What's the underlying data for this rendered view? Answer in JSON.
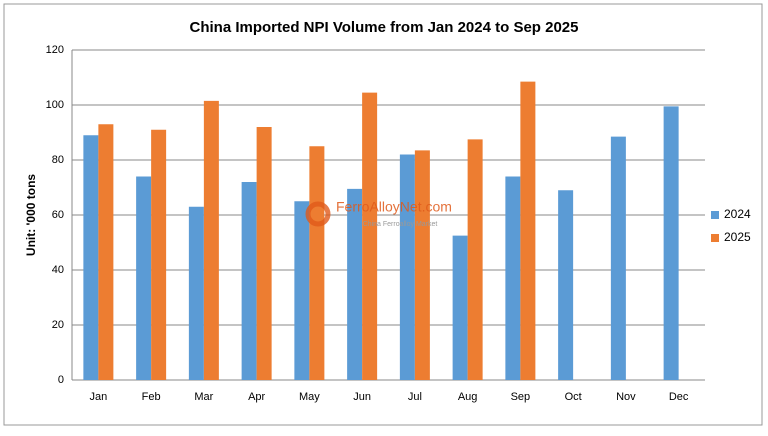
{
  "chart_data": {
    "type": "bar",
    "title": "China Imported NPI Volume from Jan 2024 to Sep 2025",
    "y_label": "Unit: '000 tons",
    "watermark": "FerroAlloyNet.com",
    "watermark_subtitle": "China Ferroalloy Market",
    "categories": [
      "Jan",
      "Feb",
      "Mar",
      "Apr",
      "May",
      "Jun",
      "Jul",
      "Aug",
      "Sep",
      "Oct",
      "Nov",
      "Dec"
    ],
    "series": [
      {
        "name": "2024",
        "color": "#5b9bd5",
        "values": [
          89,
          74,
          63,
          72,
          65,
          69.5,
          82,
          52.5,
          74,
          69,
          88.5,
          99.5
        ]
      },
      {
        "name": "2025",
        "color": "#ed7d31",
        "values": [
          93,
          91,
          101.5,
          92,
          85,
          104.5,
          83.5,
          87.5,
          108.5,
          null,
          null,
          null
        ]
      }
    ],
    "ylim": [
      0,
      120
    ],
    "yticks": [
      0,
      20,
      40,
      60,
      80,
      100,
      120
    ],
    "grid": true,
    "legend": "right"
  }
}
